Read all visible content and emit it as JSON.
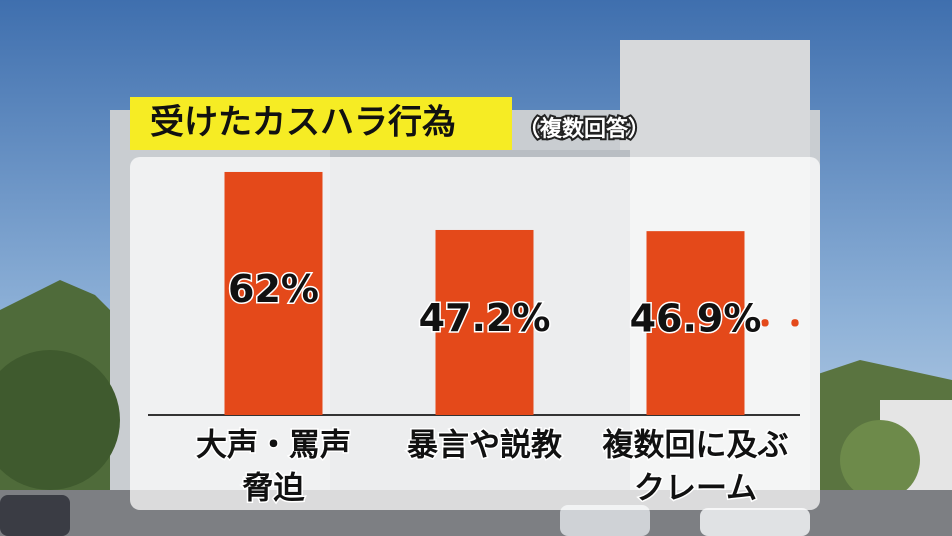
{
  "chart_data": {
    "type": "bar",
    "title": "受けたカスハラ行為",
    "subtitle": "（複数回答）",
    "categories": [
      [
        "大声・罵声",
        "脅迫"
      ],
      [
        "暴言や説教"
      ],
      [
        "複数回に及ぶ",
        "クレーム"
      ]
    ],
    "values": [
      62,
      47.2,
      46.9
    ],
    "value_labels": [
      "62%",
      "47.2%",
      "46.9%"
    ],
    "annotation": "・・・",
    "color": "#e4491a"
  }
}
